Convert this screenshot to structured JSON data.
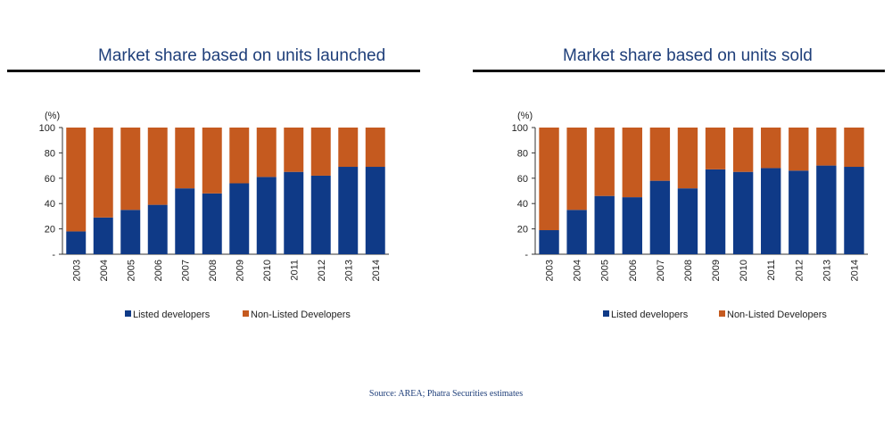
{
  "source_text": "Source: AREA; Phatra Securities estimates",
  "chart_data": [
    {
      "type": "bar",
      "stacked": true,
      "title": "Market share based on units launched",
      "ylabel": "(%)",
      "ylim": [
        0,
        100
      ],
      "yticks": [
        "-",
        "20",
        "40",
        "60",
        "80",
        "100"
      ],
      "grid": false,
      "legend_position": "bottom",
      "categories": [
        "2003",
        "2004",
        "2005",
        "2006",
        "2007",
        "2008",
        "2009",
        "2010",
        "2011",
        "2012",
        "2013",
        "2014"
      ],
      "series": [
        {
          "name": "Listed developers",
          "color": "#0f3a87",
          "values": [
            18,
            29,
            35,
            39,
            52,
            48,
            56,
            61,
            65,
            62,
            69,
            69
          ]
        },
        {
          "name": "Non-Listed Developers",
          "color": "#c55a1f",
          "values": [
            82,
            71,
            65,
            61,
            48,
            52,
            44,
            39,
            35,
            38,
            31,
            31
          ]
        }
      ]
    },
    {
      "type": "bar",
      "stacked": true,
      "title": "Market share based on units sold",
      "ylabel": "(%)",
      "ylim": [
        0,
        100
      ],
      "yticks": [
        "-",
        "20",
        "40",
        "60",
        "80",
        "100"
      ],
      "grid": false,
      "legend_position": "bottom",
      "categories": [
        "2003",
        "2004",
        "2005",
        "2006",
        "2007",
        "2008",
        "2009",
        "2010",
        "2011",
        "2012",
        "2013",
        "2014"
      ],
      "series": [
        {
          "name": "Listed developers",
          "color": "#0f3a87",
          "values": [
            19,
            35,
            46,
            45,
            58,
            52,
            67,
            65,
            68,
            66,
            70,
            69
          ]
        },
        {
          "name": "Non-Listed Developers",
          "color": "#c55a1f",
          "values": [
            81,
            65,
            54,
            55,
            42,
            48,
            33,
            35,
            32,
            34,
            30,
            31
          ]
        }
      ]
    }
  ]
}
